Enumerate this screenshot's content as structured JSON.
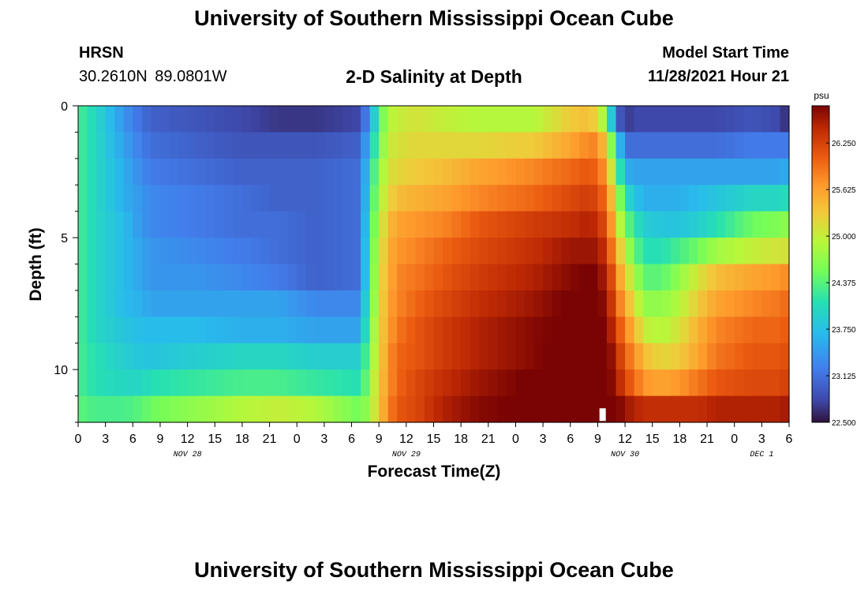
{
  "header": {
    "title": "University of Southern Mississippi Ocean Cube",
    "station": "HRSN",
    "coords": "30.2610N  89.0801W",
    "plot_title": "2-D Salinity at Depth",
    "start_label": "Model Start Time",
    "start_value": "11/28/2021 Hour 21"
  },
  "footer": {
    "title": "University of Southern Mississippi Ocean Cube"
  },
  "chart_data": {
    "type": "heatmap",
    "title": "2-D Salinity at Depth",
    "xlabel": "Forecast Time(Z)",
    "ylabel": "Depth (ft)",
    "x_range_hours": [
      0,
      78
    ],
    "x_ticks": [
      "0",
      "3",
      "6",
      "9",
      "12",
      "15",
      "18",
      "21",
      "0",
      "3",
      "6",
      "9",
      "12",
      "15",
      "18",
      "21",
      "0",
      "3",
      "6",
      "9",
      "12",
      "15",
      "18",
      "21",
      "0",
      "3",
      "6"
    ],
    "date_labels": [
      {
        "text": "NOV 28",
        "hour": 12
      },
      {
        "text": "NOV 29",
        "hour": 36
      },
      {
        "text": "NOV 30",
        "hour": 60
      },
      {
        "text": "DEC 1",
        "hour": 75
      }
    ],
    "ylim": [
      12,
      0
    ],
    "y_ticks": [
      0,
      5,
      10
    ],
    "colorbar": {
      "unit": "psu",
      "range": [
        22.5,
        26.75
      ],
      "ticks": [
        "26.250",
        "25.625",
        "25.000",
        "24.375",
        "23.750",
        "23.125",
        "22.500"
      ],
      "tick_values": [
        26.25,
        25.625,
        25.0,
        24.375,
        23.75,
        23.125,
        22.5
      ]
    },
    "depth_layers": 12,
    "time_control_hours": [
      0,
      2,
      5,
      7,
      8,
      13,
      18,
      22,
      26,
      31,
      32,
      33,
      34,
      35,
      37,
      40,
      44,
      50,
      54,
      56,
      57,
      58,
      59,
      60,
      61,
      62,
      64,
      66,
      68,
      70,
      74,
      77,
      78
    ],
    "salinity_psu": [
      [
        24.3,
        24.0,
        23.4,
        23.1,
        23.0,
        22.9,
        22.8,
        22.7,
        22.7,
        22.8,
        23.5,
        24.3,
        24.9,
        25.0,
        25.1,
        25.0,
        24.9,
        24.9,
        25.3,
        25.4,
        25.2,
        24.6,
        23.1,
        22.7,
        22.8,
        22.8,
        22.8,
        22.8,
        22.8,
        22.8,
        22.9,
        22.8,
        22.6
      ],
      [
        24.3,
        24.0,
        23.5,
        23.2,
        23.1,
        23.0,
        22.9,
        22.9,
        22.9,
        23.0,
        23.8,
        24.5,
        25.0,
        25.1,
        25.2,
        25.2,
        25.2,
        25.3,
        25.6,
        25.8,
        25.8,
        25.2,
        24.1,
        23.1,
        23.1,
        23.1,
        23.1,
        23.1,
        23.1,
        23.1,
        23.2,
        23.2,
        23.2
      ],
      [
        24.3,
        24.0,
        23.6,
        23.3,
        23.2,
        23.1,
        23.0,
        23.0,
        23.0,
        23.1,
        24.0,
        24.7,
        25.1,
        25.2,
        25.3,
        25.4,
        25.6,
        25.8,
        26.0,
        26.1,
        26.0,
        25.6,
        24.6,
        23.6,
        23.5,
        23.5,
        23.5,
        23.5,
        23.5,
        23.5,
        23.5,
        23.5,
        23.6
      ],
      [
        24.3,
        24.0,
        23.6,
        23.4,
        23.3,
        23.2,
        23.1,
        23.0,
        23.0,
        23.1,
        24.1,
        24.8,
        25.2,
        25.4,
        25.5,
        25.6,
        25.8,
        26.0,
        26.2,
        26.3,
        26.2,
        25.9,
        25.0,
        24.1,
        23.8,
        23.6,
        23.6,
        23.6,
        23.7,
        23.8,
        24.0,
        24.0,
        24.1
      ],
      [
        24.3,
        24.0,
        23.7,
        23.4,
        23.3,
        23.2,
        23.1,
        23.1,
        23.0,
        23.1,
        24.2,
        24.9,
        25.4,
        25.6,
        25.7,
        25.8,
        26.1,
        26.3,
        26.4,
        26.5,
        26.4,
        26.1,
        25.3,
        24.5,
        24.2,
        23.9,
        23.8,
        23.8,
        23.9,
        24.1,
        24.5,
        24.6,
        24.7
      ],
      [
        24.3,
        24.0,
        23.7,
        23.5,
        23.4,
        23.3,
        23.2,
        23.1,
        23.0,
        23.1,
        24.3,
        25.0,
        25.5,
        25.7,
        25.8,
        26.0,
        26.2,
        26.4,
        26.6,
        26.6,
        26.6,
        26.3,
        25.6,
        24.9,
        24.5,
        24.1,
        24.1,
        24.3,
        24.5,
        24.8,
        25.0,
        25.1,
        25.1
      ],
      [
        24.3,
        24.0,
        23.7,
        23.5,
        23.4,
        23.4,
        23.3,
        23.2,
        23.0,
        23.1,
        24.3,
        25.1,
        25.5,
        25.8,
        25.9,
        26.1,
        26.3,
        26.5,
        26.7,
        26.8,
        26.7,
        26.5,
        25.9,
        25.2,
        24.9,
        24.4,
        24.4,
        24.7,
        25.1,
        25.4,
        25.6,
        25.7,
        25.8
      ],
      [
        24.3,
        24.0,
        23.7,
        23.6,
        23.5,
        23.5,
        23.5,
        23.5,
        23.3,
        23.3,
        24.4,
        25.1,
        25.6,
        25.8,
        26.0,
        26.2,
        26.4,
        26.6,
        26.8,
        26.8,
        26.8,
        26.6,
        26.1,
        25.5,
        25.2,
        24.7,
        24.7,
        24.9,
        25.3,
        25.6,
        25.8,
        25.9,
        26.0
      ],
      [
        24.3,
        24.0,
        23.8,
        23.7,
        23.7,
        23.7,
        23.6,
        23.6,
        23.5,
        23.5,
        24.5,
        25.2,
        25.6,
        25.9,
        26.1,
        26.3,
        26.5,
        26.7,
        26.8,
        26.9,
        26.9,
        26.7,
        26.3,
        25.8,
        25.5,
        25.0,
        24.9,
        25.1,
        25.5,
        25.8,
        26.0,
        26.0,
        26.1
      ],
      [
        24.3,
        24.1,
        23.9,
        23.8,
        23.8,
        23.9,
        24.0,
        24.0,
        23.9,
        23.9,
        24.6,
        25.2,
        25.7,
        26.0,
        26.1,
        26.3,
        26.5,
        26.7,
        26.9,
        26.9,
        26.9,
        26.8,
        26.5,
        26.0,
        25.8,
        25.4,
        25.2,
        25.3,
        25.6,
        25.9,
        26.1,
        26.1,
        26.2
      ],
      [
        24.3,
        24.1,
        24.0,
        24.0,
        24.1,
        24.2,
        24.3,
        24.3,
        24.2,
        24.1,
        24.7,
        25.3,
        25.7,
        26.0,
        26.2,
        26.4,
        26.6,
        26.8,
        27.0,
        27.0,
        26.9,
        26.8,
        26.6,
        26.2,
        26.0,
        25.7,
        25.6,
        25.7,
        25.9,
        26.1,
        26.2,
        26.2,
        26.3
      ],
      [
        24.4,
        24.3,
        24.3,
        24.4,
        24.5,
        24.7,
        24.9,
        25.0,
        24.9,
        24.5,
        24.8,
        25.3,
        25.8,
        26.1,
        26.2,
        26.5,
        26.7,
        26.8,
        27.0,
        27.1,
        27.0,
        26.9,
        26.8,
        26.6,
        26.5,
        26.4,
        26.4,
        26.4,
        26.4,
        26.5,
        26.5,
        26.5,
        26.6
      ]
    ],
    "missing_marker": {
      "hour": 57.5,
      "depth_ft": 11.5
    }
  }
}
